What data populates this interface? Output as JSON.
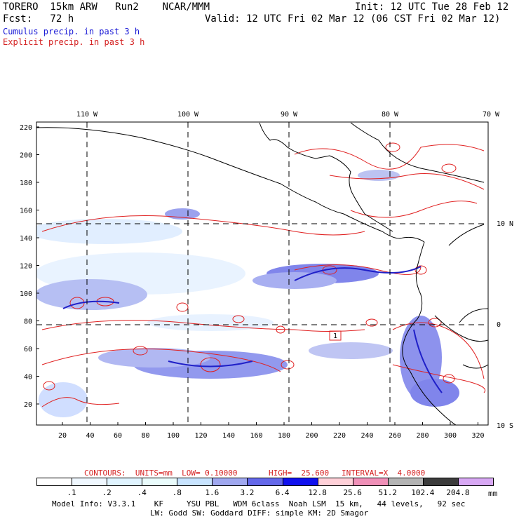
{
  "header": {
    "title_left": "TORERO  15km ARW   Run2    NCAR/MMM",
    "fcst": "Fcst:   72 h",
    "init": "Init: 12 UTC Tue 28 Feb 12",
    "valid": "Valid: 12 UTC Fri 02 Mar 12 (06 CST Fri 02 Mar 12)",
    "cumulus_label": "Cumulus precip. in past 3 h",
    "explicit_label": "Explicit precip. in past 3 h"
  },
  "map": {
    "lon_labels": [
      "110 W",
      "100 W",
      "90 W",
      "80 W",
      "70 W"
    ],
    "lat_labels": [
      "10 N",
      "0",
      "10 S"
    ],
    "y_ticks": [
      "220",
      "200",
      "180",
      "160",
      "140",
      "120",
      "100",
      "80",
      "60",
      "40",
      "20"
    ],
    "x_ticks": [
      "20",
      "40",
      "60",
      "80",
      "100",
      "120",
      "140",
      "160",
      "180",
      "200",
      "220",
      "240",
      "260",
      "280",
      "300",
      "320"
    ],
    "box_label": "1"
  },
  "contours_info": {
    "units": "CONTOURS:  UNITS=mm  LOW= 0.10000",
    "high": "HIGH=  25.600",
    "interval": "INTERVAL=X  4.0000"
  },
  "legend": {
    "labels": [
      ".1",
      ".2",
      ".4",
      ".8",
      "1.6",
      "3.2",
      "6.4",
      "12.8",
      "25.6",
      "51.2",
      "102.4",
      "204.8"
    ],
    "unit": "mm",
    "colors": [
      "#ffffff",
      "#f0f8ff",
      "#e0f4ff",
      "#eafcfc",
      "#c8e4ff",
      "#a0a8f0",
      "#6468ea",
      "#1010ee",
      "#ffd0d8",
      "#f090b8",
      "#b4b4b4",
      "#3c3c3c",
      "#d8a8f4"
    ]
  },
  "footer": {
    "line1": "Model Info: V3.3.1    KF     YSU PBL   WDM 6class  Noah LSM  15 km,   44 levels,   92 sec",
    "line2": "LW: Godd SW: Goddard DIFF: simple KM: 2D Smagor"
  }
}
